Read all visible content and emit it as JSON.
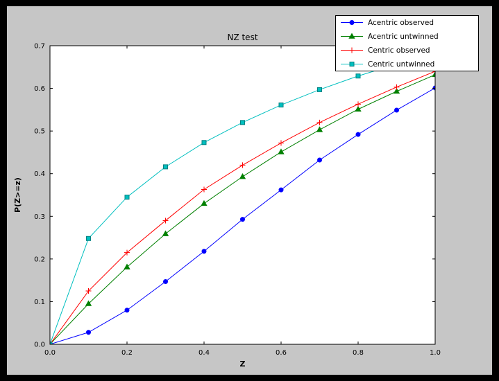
{
  "window": {
    "background": "#000000",
    "figure_background": "#c6c6c6",
    "plot_background": "#ffffff"
  },
  "chart_data": {
    "type": "line",
    "title": "NZ test",
    "xlabel": "Z",
    "ylabel": "P(Z>=z)",
    "xlim": [
      0.0,
      1.0
    ],
    "ylim": [
      0.0,
      0.7
    ],
    "xticks": [
      0.0,
      0.2,
      0.4,
      0.6,
      0.8,
      1.0
    ],
    "yticks": [
      0.0,
      0.1,
      0.2,
      0.3,
      0.4,
      0.5,
      0.6,
      0.7
    ],
    "grid": false,
    "legend_position": "upper right",
    "x": [
      0.0,
      0.1,
      0.2,
      0.3,
      0.4,
      0.5,
      0.6,
      0.7,
      0.8,
      0.9,
      1.0
    ],
    "series": [
      {
        "name": "Acentric observed",
        "color": "#0000ff",
        "marker": "circle",
        "values": [
          0.0,
          0.028,
          0.08,
          0.147,
          0.218,
          0.293,
          0.362,
          0.432,
          0.492,
          0.549,
          0.601
        ]
      },
      {
        "name": "Acentric untwinned",
        "color": "#008000",
        "marker": "triangle",
        "values": [
          0.0,
          0.095,
          0.181,
          0.259,
          0.33,
          0.393,
          0.451,
          0.503,
          0.551,
          0.593,
          0.632
        ]
      },
      {
        "name": "Centric observed",
        "color": "#ff0000",
        "marker": "plus",
        "values": [
          0.0,
          0.125,
          0.215,
          0.29,
          0.363,
          0.42,
          0.472,
          0.52,
          0.563,
          0.603,
          0.64
        ]
      },
      {
        "name": "Centric untwinned",
        "color": "#00bfbf",
        "marker": "square",
        "marker_edge": "#008080",
        "values": [
          0.0,
          0.248,
          0.345,
          0.416,
          0.473,
          0.52,
          0.561,
          0.597,
          0.629,
          0.657,
          0.683
        ]
      }
    ]
  }
}
